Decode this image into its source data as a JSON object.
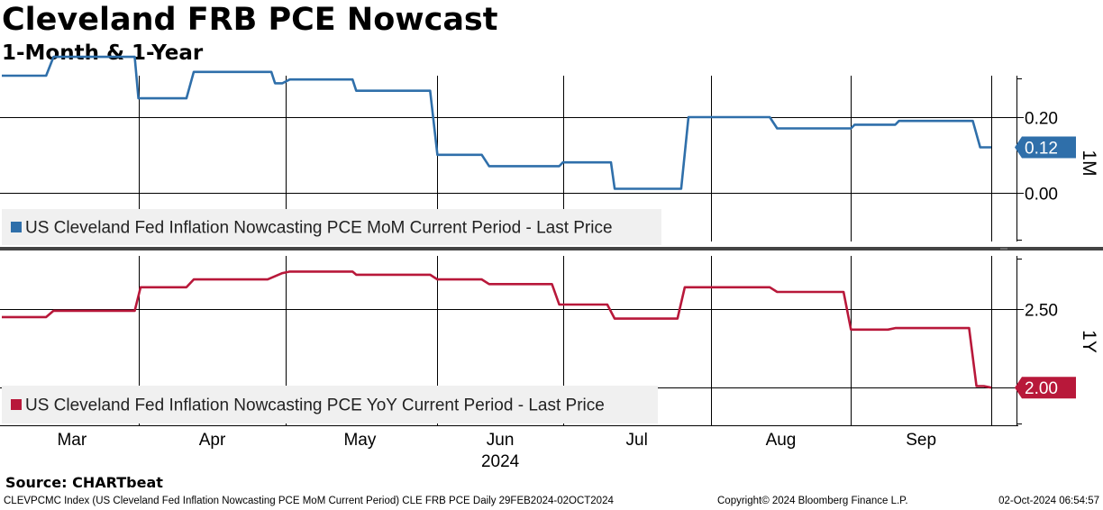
{
  "title": "Cleveland FRB PCE Nowcast",
  "subtitle": "1-Month & 1-Year",
  "source": "Source:  CHARTbeat",
  "footer": {
    "left": "CLEVPCMC Index (US Cleveland Fed Inflation Nowcasting PCE MoM Current Period) CLE FRB PCE  Daily 29FEB2024-02OCT2024",
    "middle": "Copyright© 2024 Bloomberg Finance L.P.",
    "right": "02-Oct-2024 06:54:57"
  },
  "colors": {
    "mom": "#2f6faa",
    "yoy": "#b8183a",
    "grid": "#000000",
    "legend_bg": "#f0f0f0"
  },
  "chart_data": [
    {
      "type": "line",
      "panel": "top",
      "side_label": "1M",
      "legend": "US Cleveland Fed Inflation Nowcasting PCE MoM Current Period  - Last Price",
      "ylim": [
        -0.13,
        0.31
      ],
      "yticks": [
        0.0,
        0.2
      ],
      "ytick_labels": [
        "0.00",
        "0.20"
      ],
      "last_label": "0.12",
      "series": [
        {
          "name": "MoM",
          "color": "#2f6faa",
          "points": [
            [
              0,
              0.31
            ],
            [
              6,
              0.31
            ],
            [
              7,
              0.36
            ],
            [
              18,
              0.36
            ],
            [
              18.5,
              0.25
            ],
            [
              25,
              0.25
            ],
            [
              26,
              0.32
            ],
            [
              36.5,
              0.32
            ],
            [
              37,
              0.29
            ],
            [
              38,
              0.29
            ],
            [
              39,
              0.3
            ],
            [
              47.5,
              0.3
            ],
            [
              48,
              0.27
            ],
            [
              58,
              0.27
            ],
            [
              59,
              0.1
            ],
            [
              65,
              0.1
            ],
            [
              66,
              0.07
            ],
            [
              75.5,
              0.07
            ],
            [
              76,
              0.08
            ],
            [
              82.5,
              0.08
            ],
            [
              83,
              0.01
            ],
            [
              92,
              0.01
            ],
            [
              93,
              0.2
            ],
            [
              104,
              0.2
            ],
            [
              105,
              0.17
            ],
            [
              115,
              0.17
            ],
            [
              115.5,
              0.18
            ],
            [
              121,
              0.18
            ],
            [
              121.5,
              0.19
            ],
            [
              131.5,
              0.19
            ],
            [
              132.5,
              0.12
            ],
            [
              134,
              0.12
            ]
          ]
        }
      ]
    },
    {
      "type": "line",
      "panel": "bottom",
      "side_label": "1Y",
      "legend": "US Cleveland Fed Inflation Nowcasting PCE YoY Current Period  - Last Price",
      "ylim": [
        1.76,
        2.84
      ],
      "yticks": [
        2.0,
        2.5
      ],
      "ytick_labels": [
        "",
        "2.50"
      ],
      "last_label": "2.00",
      "series": [
        {
          "name": "YoY",
          "color": "#b8183a",
          "points": [
            [
              0,
              2.45
            ],
            [
              6,
              2.45
            ],
            [
              7,
              2.49
            ],
            [
              18,
              2.49
            ],
            [
              18.8,
              2.64
            ],
            [
              25,
              2.64
            ],
            [
              26,
              2.69
            ],
            [
              36,
              2.69
            ],
            [
              38,
              2.73
            ],
            [
              39,
              2.74
            ],
            [
              47.5,
              2.74
            ],
            [
              48,
              2.72
            ],
            [
              58,
              2.72
            ],
            [
              59,
              2.69
            ],
            [
              65,
              2.69
            ],
            [
              66,
              2.66
            ],
            [
              74.5,
              2.66
            ],
            [
              75.5,
              2.53
            ],
            [
              82,
              2.53
            ],
            [
              83,
              2.44
            ],
            [
              91.5,
              2.44
            ],
            [
              92.5,
              2.64
            ],
            [
              104,
              2.64
            ],
            [
              105,
              2.61
            ],
            [
              114,
              2.61
            ],
            [
              115,
              2.37
            ],
            [
              120,
              2.37
            ],
            [
              121,
              2.38
            ],
            [
              131,
              2.38
            ],
            [
              132,
              2.01
            ],
            [
              133,
              2.01
            ],
            [
              134,
              2.0
            ]
          ]
        }
      ]
    }
  ],
  "x_axis": {
    "range": [
      0,
      134
    ],
    "gridlines": [
      18.5,
      38.5,
      59,
      76,
      96,
      115,
      134
    ],
    "months": [
      {
        "label": "Mar",
        "x": 9.5
      },
      {
        "label": "Apr",
        "x": 28.5
      },
      {
        "label": "May",
        "x": 48.5
      },
      {
        "label": "Jun",
        "x": 67.5
      },
      {
        "label": "Jul",
        "x": 86
      },
      {
        "label": "Aug",
        "x": 105.5
      },
      {
        "label": "Sep",
        "x": 124.5
      }
    ],
    "year": {
      "label": "2024",
      "x": 67.5
    }
  }
}
